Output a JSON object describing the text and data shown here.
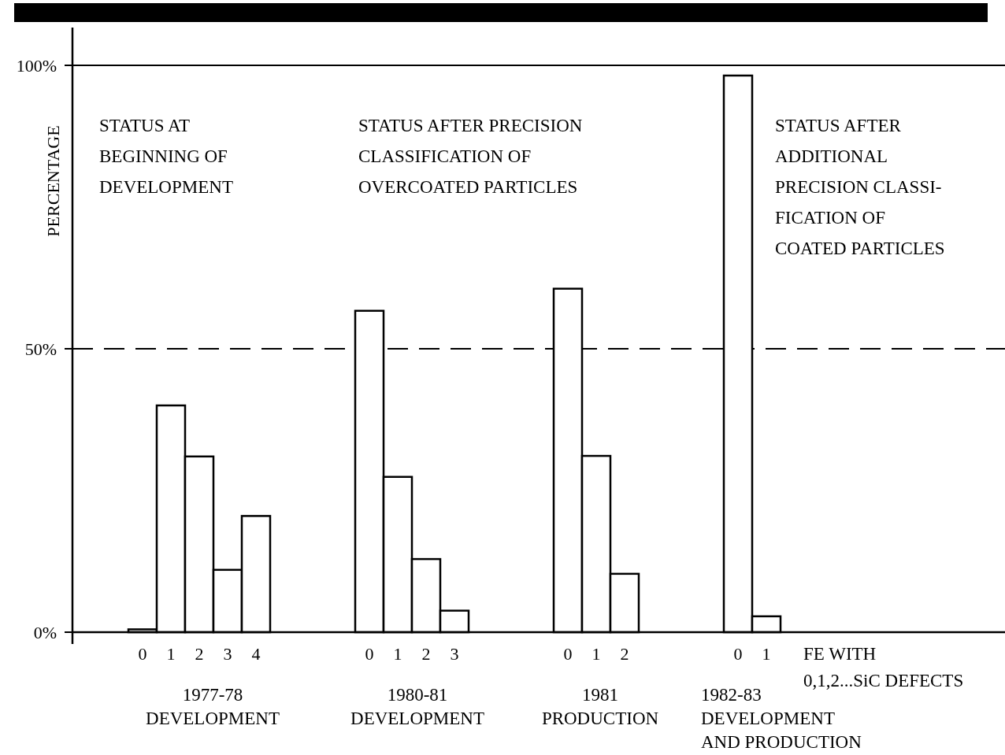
{
  "chart_data": {
    "type": "bar",
    "categories": [
      "0",
      "1",
      "2",
      "3",
      "4",
      null,
      null,
      null,
      "0",
      "1",
      "2",
      "3",
      null,
      null,
      null,
      "0",
      "1",
      "2",
      null,
      null,
      null,
      "0",
      "1"
    ],
    "series": [
      {
        "color": "#ffffff",
        "values": [
          0.5,
          40,
          31,
          11,
          20.5,
          null,
          null,
          null,
          56.7,
          27.4,
          12.9,
          3.8,
          null,
          null,
          null,
          60.6,
          31.1,
          10.3,
          null,
          null,
          null,
          98.2,
          2.8
        ]
      }
    ],
    "ylabel": "PERCENTAGE",
    "xlabel": "FE WITH\n0,1,2...SiC DEFECTS",
    "ylim": [
      0,
      100
    ],
    "yticks": [
      {
        "value": 0,
        "label": "0%"
      },
      {
        "value": 50,
        "label": "50%"
      },
      {
        "value": 100,
        "label": "100%"
      }
    ],
    "ref_lines": [
      {
        "axis": "y",
        "value": 100,
        "line_style": "solid",
        "color": "#000000"
      },
      {
        "axis": "y",
        "value": 50,
        "line_style": "dashed",
        "color": "#000000"
      }
    ],
    "grid": false,
    "annotations": [
      "STATUS AT\nBEGINNING OF\nDEVELOPMENT",
      "STATUS AFTER PRECISION\nCLASSIFICATION OF\nOVERCOATED PARTICLES",
      "STATUS AFTER\nADDITIONAL\nPRECISION CLASSI-\nFICATION OF\nCOATED PARTICLES",
      "1977-78\nDEVELOPMENT",
      "1980-81\nDEVELOPMENT",
      "1981\nPRODUCTION",
      "1982-83\nDEVELOPMENT\nAND PRODUCTION"
    ]
  }
}
